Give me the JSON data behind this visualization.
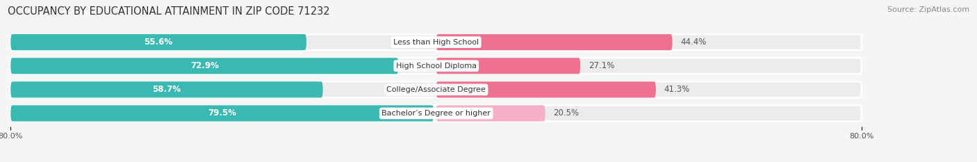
{
  "title": "OCCUPANCY BY EDUCATIONAL ATTAINMENT IN ZIP CODE 71232",
  "source": "Source: ZipAtlas.com",
  "categories": [
    "Less than High School",
    "High School Diploma",
    "College/Associate Degree",
    "Bachelor’s Degree or higher"
  ],
  "owner_values": [
    55.6,
    72.9,
    58.7,
    79.5
  ],
  "renter_values": [
    44.4,
    27.1,
    41.3,
    20.5
  ],
  "owner_color": "#3ab8b2",
  "renter_color_dark": [
    "#f07090",
    "#f07090",
    "#f07090",
    "#f5a0bc"
  ],
  "renter_color_light": [
    "#f07090",
    "#f07090",
    "#f07090",
    "#f5b8ce"
  ],
  "xlim": 80.0,
  "bar_height": 0.68,
  "background_color": "#f5f5f5",
  "bar_bg_color": "#e0e0e0",
  "row_bg_color": "#ececec",
  "title_fontsize": 10.5,
  "source_fontsize": 8,
  "value_fontsize": 8.5,
  "cat_fontsize": 8,
  "tick_fontsize": 8,
  "legend_fontsize": 8.5,
  "renter_colors": [
    "#f07090",
    "#f07090",
    "#f07090",
    "#f5b0c8"
  ]
}
